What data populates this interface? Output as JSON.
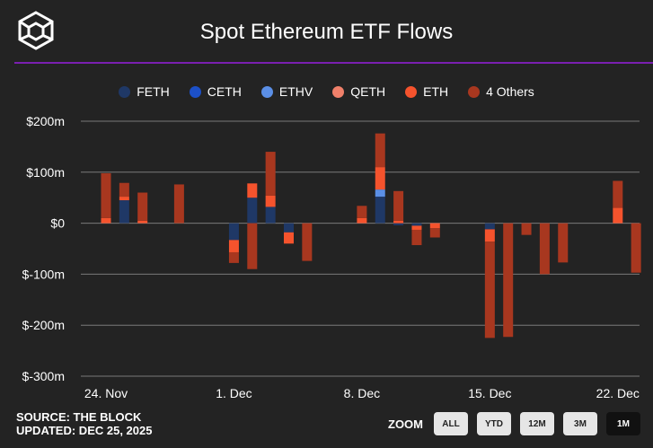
{
  "header": {
    "title": "Spot Ethereum ETF Flows",
    "logo_icon": "the-block-cube-logo"
  },
  "footer": {
    "source": "SOURCE: THE BLOCK",
    "updated": "UPDATED: DEC 25, 2025"
  },
  "zoom": {
    "label": "ZOOM",
    "buttons": [
      "ALL",
      "YTD",
      "12M",
      "3M",
      "1M"
    ],
    "active": "1M"
  },
  "chart_data": {
    "type": "bar",
    "stacked": true,
    "title": "Spot Ethereum ETF Flows",
    "ylim": [
      -300,
      200
    ],
    "y_ticks": [
      -300,
      -200,
      -100,
      0,
      100,
      200
    ],
    "y_tick_labels": [
      "$-300m",
      "$-200m",
      "$-100m",
      "$0",
      "$100m",
      "$200m"
    ],
    "x_tick_labels": [
      "24. Nov",
      "1. Dec",
      "8. Dec",
      "15. Dec",
      "22. Dec"
    ],
    "legend_position": "top-center",
    "series": [
      {
        "name": "FETH",
        "color": "#1f3866"
      },
      {
        "name": "CETH",
        "color": "#1c50c8"
      },
      {
        "name": "ETHV",
        "color": "#5b8fe6"
      },
      {
        "name": "QETH",
        "color": "#f0806a"
      },
      {
        "name": "ETH",
        "color": "#f5532d"
      },
      {
        "name": "4 Others",
        "color": "#a8371f"
      }
    ],
    "days": [
      {
        "date": "2025-11-24",
        "values": {
          "ETH": 10,
          "4 Others": 88
        }
      },
      {
        "date": "2025-11-25",
        "values": {
          "FETH": 45,
          "ETH": 7,
          "4 Others": 27
        }
      },
      {
        "date": "2025-11-26",
        "values": {
          "ETH": 5,
          "4 Others": 55
        }
      },
      {
        "date": "2025-11-28",
        "values": {
          "4 Others": 76
        }
      },
      {
        "date": "2025-12-01",
        "values": {
          "FETH": -33,
          "ETH": -24,
          "4 Others": -21
        }
      },
      {
        "date": "2025-12-02",
        "values": {
          "FETH": 50,
          "ETH": 28,
          "4 Others": -90
        }
      },
      {
        "date": "2025-12-03",
        "values": {
          "FETH": 32,
          "ETH": 22,
          "4 Others": 86
        }
      },
      {
        "date": "2025-12-04",
        "values": {
          "FETH": -18,
          "ETH": -22
        }
      },
      {
        "date": "2025-12-05",
        "values": {
          "4 Others": -74
        }
      },
      {
        "date": "2025-12-08",
        "values": {
          "ETH": 10,
          "4 Others": 24
        }
      },
      {
        "date": "2025-12-09",
        "values": {
          "FETH": 52,
          "ETHV": 14,
          "ETH": 44,
          "4 Others": 66
        }
      },
      {
        "date": "2025-12-10",
        "values": {
          "FETH": -4,
          "ETH": 5,
          "4 Others": 58
        }
      },
      {
        "date": "2025-12-11",
        "values": {
          "FETH": -5,
          "ETH": -8,
          "4 Others": -30
        }
      },
      {
        "date": "2025-12-12",
        "values": {
          "ETH": -10,
          "4 Others": -18
        }
      },
      {
        "date": "2025-12-15",
        "values": {
          "FETH": -12,
          "ETH": -24,
          "4 Others": -189
        }
      },
      {
        "date": "2025-12-16",
        "values": {
          "4 Others": -223
        }
      },
      {
        "date": "2025-12-17",
        "values": {
          "4 Others": -23
        }
      },
      {
        "date": "2025-12-18",
        "values": {
          "4 Others": -100
        }
      },
      {
        "date": "2025-12-19",
        "values": {
          "4 Others": -77
        }
      },
      {
        "date": "2025-12-22",
        "values": {
          "ETH": 30,
          "4 Others": 53
        }
      },
      {
        "date": "2025-12-23",
        "values": {
          "4 Others": -97
        }
      }
    ]
  }
}
